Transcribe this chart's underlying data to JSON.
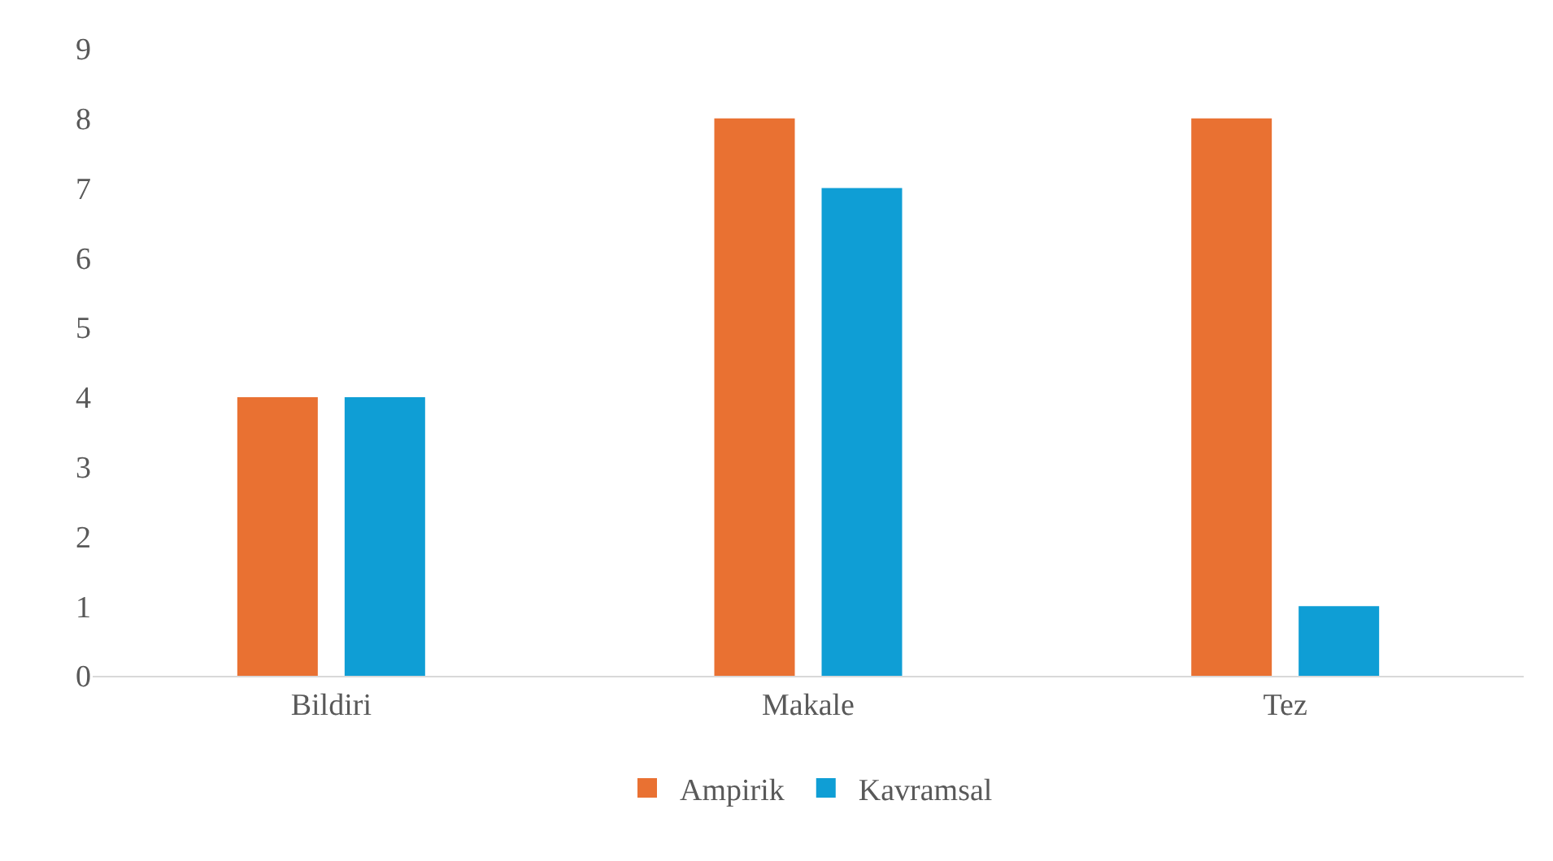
{
  "chart_data": {
    "type": "bar",
    "categories": [
      "Bildiri",
      "Makale",
      "Tez"
    ],
    "series": [
      {
        "name": "Ampirik",
        "color": "#e97132",
        "values": [
          4,
          8,
          8
        ]
      },
      {
        "name": "Kavramsal",
        "color": "#0f9ed5",
        "values": [
          4,
          7,
          1
        ]
      }
    ],
    "ylim": [
      0,
      9
    ],
    "yticks": [
      0,
      1,
      2,
      3,
      4,
      5,
      6,
      7,
      8,
      9
    ],
    "grid": false,
    "legend": "bottom"
  }
}
